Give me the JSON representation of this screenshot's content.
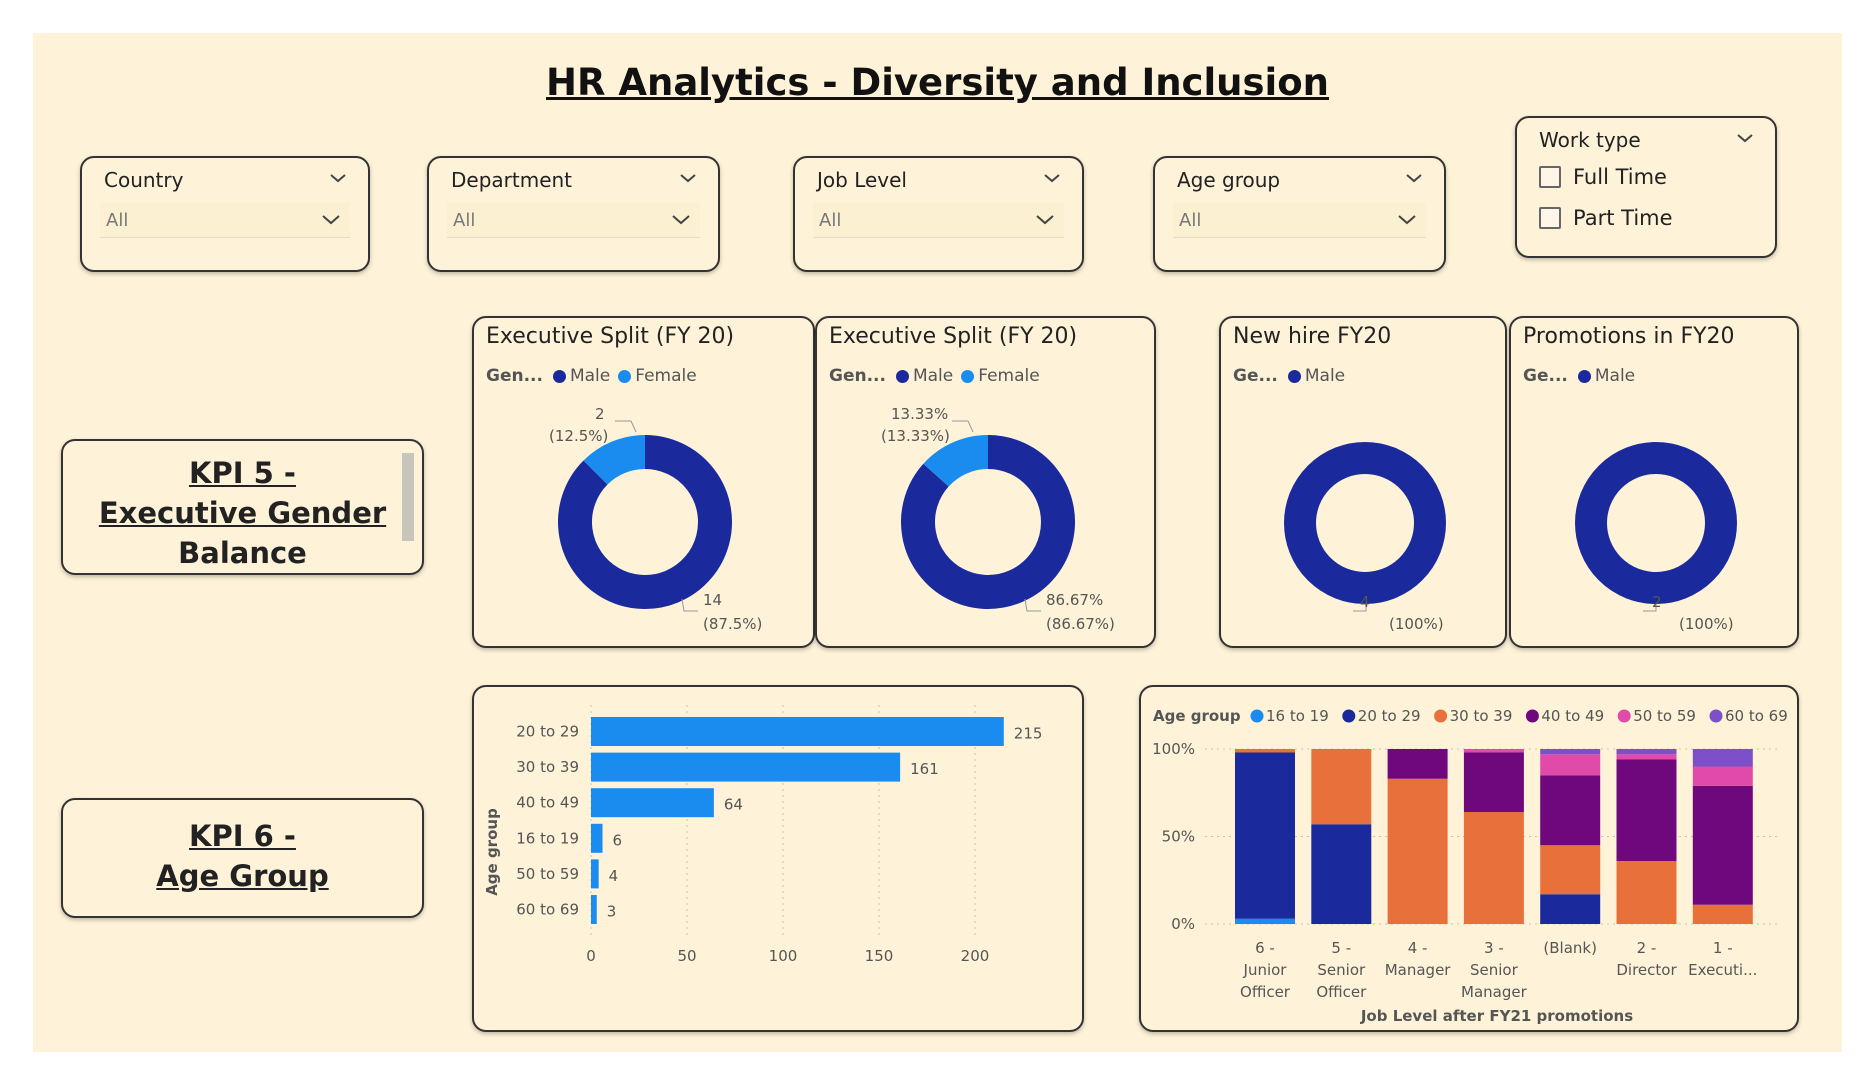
{
  "page": {
    "title": "HR Analytics - Diversity and Inclusion"
  },
  "colors": {
    "background": "#fef3d9",
    "male": "#1a2a9c",
    "female": "#1a8cf0",
    "orange": "#e8703a",
    "purple": "#6e087c",
    "pink": "#e04aa8",
    "violet": "#7d4fc8"
  },
  "slicers": {
    "country": {
      "title": "Country",
      "value": "All"
    },
    "department": {
      "title": "Department",
      "value": "All"
    },
    "job_level": {
      "title": "Job Level",
      "value": "All"
    },
    "age_group": {
      "title": "Age group",
      "value": "All"
    },
    "work_type": {
      "title": "Work type",
      "options": [
        "Full Time",
        "Part Time"
      ]
    }
  },
  "kpi5": {
    "line1": "KPI 5 -",
    "line2": "Executive Gender ",
    "line3": "Balance"
  },
  "kpi6": {
    "line1": "KPI 6 -",
    "line2": "Age Group"
  },
  "icons": {
    "chevron": "chevron-down-icon",
    "checkbox": "checkbox-icon"
  },
  "charts": {
    "exec_split_1": {
      "title": "Executive Split (FY 20)",
      "legend_title": "Gen...",
      "legend": [
        "Male",
        "Female"
      ],
      "label_female_1": "2",
      "label_female_2": "(12.5%)",
      "label_male_1": "14",
      "label_male_2": "(87.5%)"
    },
    "exec_split_2": {
      "title": "Executive Split (FY 20)",
      "legend_title": "Gen...",
      "legend": [
        "Male",
        "Female"
      ],
      "label_female_1": "13.33%",
      "label_female_2": "(13.33%)",
      "label_male_1": "86.67%",
      "label_male_2": "(86.67%)"
    },
    "new_hire": {
      "title": "New hire FY20",
      "legend_title": "Ge...",
      "legend": [
        "Male"
      ],
      "label_male_1": "4",
      "label_male_2": "(100%)"
    },
    "promotions": {
      "title": "Promotions in FY20",
      "legend_title": "Ge...",
      "legend": [
        "Male"
      ],
      "label_male_1": "2",
      "label_male_2": "(100%)"
    },
    "stacked": {
      "legend_title": "Age group",
      "xlabel": "Job Level after FY21 promotions"
    }
  },
  "chart_data": [
    {
      "type": "pie",
      "title": "Executive Split (FY 20)",
      "categories": [
        "Male",
        "Female"
      ],
      "values": [
        14,
        2
      ]
    },
    {
      "type": "pie",
      "title": "Executive Split (FY 20)",
      "categories": [
        "Male",
        "Female"
      ],
      "values": [
        86.67,
        13.33
      ]
    },
    {
      "type": "pie",
      "title": "New hire FY20",
      "categories": [
        "Male"
      ],
      "values": [
        4
      ]
    },
    {
      "type": "pie",
      "title": "Promotions in FY20",
      "categories": [
        "Male"
      ],
      "values": [
        2
      ]
    },
    {
      "type": "bar",
      "orientation": "horizontal",
      "categories": [
        "20 to 29",
        "30 to 39",
        "40 to 49",
        "16 to 19",
        "50 to 59",
        "60 to 69"
      ],
      "values": [
        215,
        161,
        64,
        6,
        4,
        3
      ],
      "xlabel": "",
      "ylabel": "Age group",
      "xlim": [
        0,
        215
      ],
      "xticks": [
        0,
        50,
        100,
        150,
        200
      ],
      "grid": true
    },
    {
      "type": "bar",
      "stacked": "percent",
      "categories": [
        "6 - Junior Officer",
        "5 - Senior Officer",
        "4 - Manager",
        "3 - Senior Manager",
        "(Blank)",
        "2 - Director",
        "1 - Executi..."
      ],
      "xlabel": "Job Level after FY21 promotions",
      "ylabel": "",
      "yticks": [
        "0%",
        "50%",
        "100%"
      ],
      "legend_title": "Age group",
      "series": [
        {
          "name": "16 to 19",
          "color": "#1a8cf0",
          "values": [
            3,
            0,
            0,
            0,
            0,
            0,
            0
          ]
        },
        {
          "name": "20 to 29",
          "color": "#1a2a9c",
          "values": [
            95,
            57,
            0,
            0,
            17,
            0,
            0
          ]
        },
        {
          "name": "30 to 39",
          "color": "#e8703a",
          "values": [
            2,
            43,
            83,
            64,
            28,
            36,
            11
          ]
        },
        {
          "name": "40 to 49",
          "color": "#6e087c",
          "values": [
            0,
            0,
            17,
            34,
            40,
            58,
            68
          ]
        },
        {
          "name": "50 to 59",
          "color": "#e04aa8",
          "values": [
            0,
            0,
            0,
            2,
            12,
            3,
            11
          ]
        },
        {
          "name": "60 to 69",
          "color": "#7d4fc8",
          "values": [
            0,
            0,
            0,
            0,
            3,
            3,
            10
          ]
        }
      ]
    }
  ]
}
